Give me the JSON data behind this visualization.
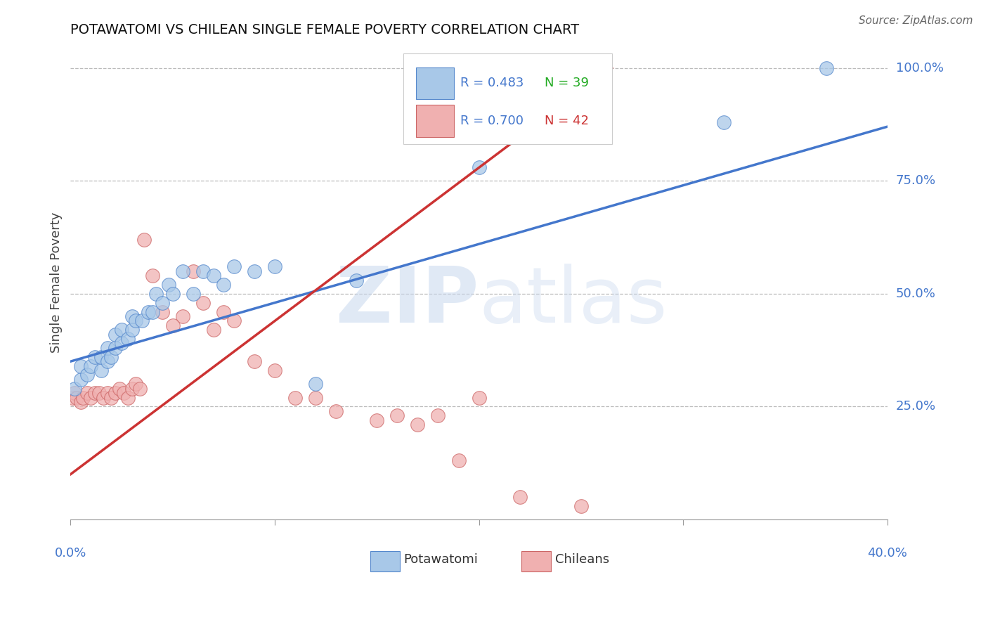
{
  "title": "POTAWATOMI VS CHILEAN SINGLE FEMALE POVERTY CORRELATION CHART",
  "source": "Source: ZipAtlas.com",
  "ylabel": "Single Female Poverty",
  "xlim": [
    0.0,
    0.4
  ],
  "ylim": [
    0.0,
    1.05
  ],
  "watermark_zip": "ZIP",
  "watermark_atlas": "atlas",
  "legend_blue_r": "R = 0.483",
  "legend_blue_n": "N = 39",
  "legend_pink_r": "R = 0.700",
  "legend_pink_n": "N = 42",
  "blue_color": "#a8c8e8",
  "pink_color": "#f0b0b0",
  "blue_edge_color": "#5588cc",
  "pink_edge_color": "#cc6666",
  "blue_line_color": "#4477cc",
  "pink_line_color": "#cc3333",
  "potawatomi_x": [
    0.002,
    0.005,
    0.005,
    0.008,
    0.01,
    0.012,
    0.015,
    0.015,
    0.018,
    0.018,
    0.02,
    0.022,
    0.022,
    0.025,
    0.025,
    0.028,
    0.03,
    0.03,
    0.032,
    0.035,
    0.038,
    0.04,
    0.042,
    0.045,
    0.048,
    0.05,
    0.055,
    0.06,
    0.065,
    0.07,
    0.075,
    0.08,
    0.09,
    0.1,
    0.12,
    0.14,
    0.2,
    0.32,
    0.37
  ],
  "potawatomi_y": [
    0.29,
    0.31,
    0.34,
    0.32,
    0.34,
    0.36,
    0.33,
    0.36,
    0.35,
    0.38,
    0.36,
    0.38,
    0.41,
    0.39,
    0.42,
    0.4,
    0.42,
    0.45,
    0.44,
    0.44,
    0.46,
    0.46,
    0.5,
    0.48,
    0.52,
    0.5,
    0.55,
    0.5,
    0.55,
    0.54,
    0.52,
    0.56,
    0.55,
    0.56,
    0.3,
    0.53,
    0.78,
    0.88,
    1.0
  ],
  "chilean_x": [
    0.001,
    0.002,
    0.003,
    0.005,
    0.006,
    0.008,
    0.01,
    0.012,
    0.014,
    0.016,
    0.018,
    0.02,
    0.022,
    0.024,
    0.026,
    0.028,
    0.03,
    0.032,
    0.034,
    0.036,
    0.04,
    0.045,
    0.05,
    0.055,
    0.06,
    0.065,
    0.07,
    0.075,
    0.08,
    0.09,
    0.1,
    0.11,
    0.12,
    0.13,
    0.15,
    0.16,
    0.17,
    0.18,
    0.19,
    0.2,
    0.22,
    0.25
  ],
  "chilean_y": [
    0.27,
    0.28,
    0.27,
    0.26,
    0.27,
    0.28,
    0.27,
    0.28,
    0.28,
    0.27,
    0.28,
    0.27,
    0.28,
    0.29,
    0.28,
    0.27,
    0.29,
    0.3,
    0.29,
    0.62,
    0.54,
    0.46,
    0.43,
    0.45,
    0.55,
    0.48,
    0.42,
    0.46,
    0.44,
    0.35,
    0.33,
    0.27,
    0.27,
    0.24,
    0.22,
    0.23,
    0.21,
    0.23,
    0.13,
    0.27,
    0.05,
    0.03
  ],
  "blue_regline_x": [
    0.0,
    0.4
  ],
  "blue_regline_y": [
    0.35,
    0.87
  ],
  "pink_regline_x": [
    0.0,
    0.265
  ],
  "pink_regline_y": [
    0.1,
    1.0
  ],
  "ytick_values": [
    0.25,
    0.5,
    0.75,
    1.0
  ],
  "ytick_labels": [
    "25.0%",
    "50.0%",
    "75.0%",
    "100.0%"
  ],
  "xtick_label_left": "0.0%",
  "xtick_label_right": "40.0%"
}
